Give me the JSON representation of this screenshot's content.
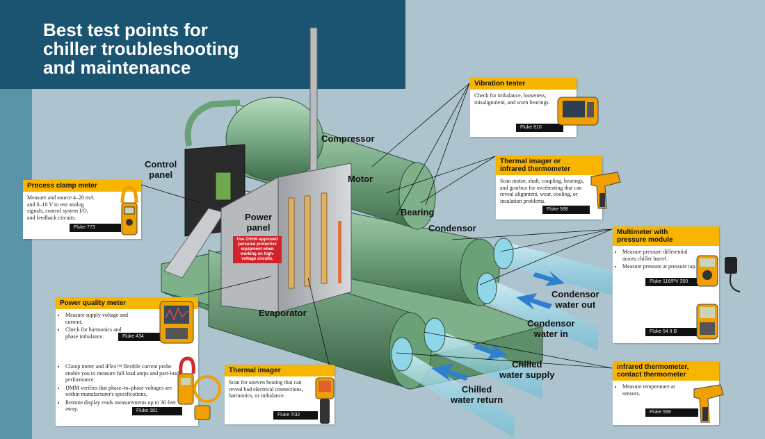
{
  "title_lines": [
    "Best test points for",
    "chiller troubleshooting",
    "and maintenance"
  ],
  "components": {
    "compressor": "Compressor",
    "control_panel": [
      "Control",
      "panel"
    ],
    "motor": "Motor",
    "power_panel": [
      "Power",
      "panel"
    ],
    "bearing": "Bearing",
    "condensor": "Condensor",
    "evaporator": "Evaporator",
    "condensor_water_out": [
      "Condensor",
      "water out"
    ],
    "condensor_water_in": [
      "Condensor",
      "water in"
    ],
    "chilled_water_supply": [
      "Chilled",
      "water supply"
    ],
    "chilled_water_return": [
      "Chilled",
      "water return"
    ]
  },
  "warning": "Use OSHA-approved personal protective equipment when working on high-voltage circuits.",
  "cards": {
    "process_clamp": {
      "title": "Process clamp meter",
      "text": "Measure and source 4–20 mA and 0–10 V to test analog signals, control system I/O, and feedback circuits.",
      "model": "Fluke 773"
    },
    "power_quality": {
      "title": "Power quality meter",
      "bullets": [
        "Measure supply voltage and current.",
        "Check for harmonics and phase imbalance."
      ],
      "model1": "Fluke 434",
      "bullets2": [
        "Clamp meter and iFlex™ flexible current probe enable you to measure full load amps and part-load performance.",
        "DMM verifies that phase–to–phase voltages are within manufacturer's specifications.",
        "Remote display reads measurements up to 30 feet away."
      ],
      "model2": "Fluke 381"
    },
    "thermal_imager": {
      "title": "Thermal imager",
      "text": "Scan for uneven heating that can reveal bad electrical connections, harmonics, or imbalance.",
      "model": "Fluke Ti32"
    },
    "vibration": {
      "title": "Vibration tester",
      "text": "Check for imbalance, looseness, misalignment, and worn bearings.",
      "model": "Fluke 810"
    },
    "thermal_ir": {
      "title_lines": [
        "Thermal imager or",
        "infrared thermometer"
      ],
      "text": "Scan motor, shaft, coupling, bearings, and gearbox for overheating that can reveal alignment, wear, cooling, or insulation problems.",
      "model": "Fluke 568"
    },
    "multimeter": {
      "title_lines": [
        "Multimeter with",
        "pressure module"
      ],
      "bullets": [
        "Measure pressure differential across chiller barrel.",
        "Measure pressure at pressure tap."
      ],
      "model1": "Fluke 116/PV 350",
      "model2": "Fluke 54 II B"
    },
    "ir_contact": {
      "title_lines": [
        "infrared thermometer,",
        "contact thermometer"
      ],
      "bullets": [
        "Measure temperature at sensors."
      ],
      "model": "Fluke 568"
    }
  },
  "colors": {
    "background": "#adc4cf",
    "title_bar": "#1a5470",
    "stripe": "#5a94a8",
    "card_header": "#f7b500",
    "chiller_green": "#7eb08a",
    "pipe_blue": "#7fd3e6",
    "arrow_blue": "#2f7fd0",
    "warning_red": "#d2232a"
  }
}
